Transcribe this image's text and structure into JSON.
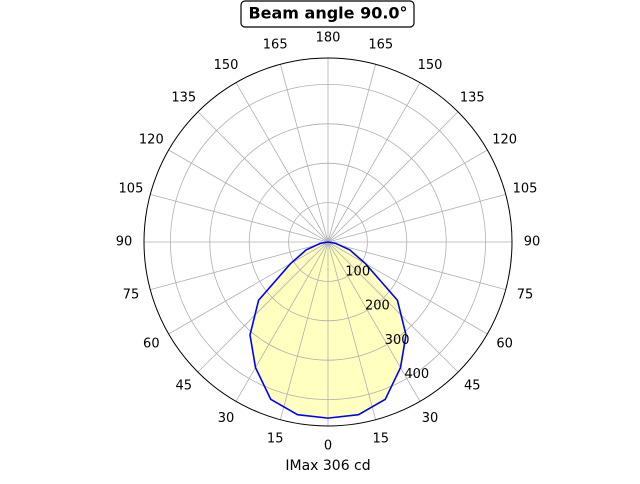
{
  "chart_data": {
    "type": "polar",
    "title": "Beam angle 90.0°",
    "xlabel": "IMax 306 cd",
    "x": [
      -90,
      -80,
      -70,
      -60,
      -50,
      -40,
      -30,
      -20,
      -10,
      0,
      10,
      20,
      30,
      40,
      50,
      60,
      70,
      80,
      90
    ],
    "series": [
      {
        "color": "#0000ff",
        "fill": "#ffffc0",
        "values": [
          0,
          20,
          59,
          110,
          230,
          308,
          368,
          425,
          445,
          447,
          445,
          425,
          368,
          308,
          230,
          110,
          59,
          20,
          0
        ]
      }
    ],
    "rlim": [
      0,
      467
    ],
    "rticks": [
      100,
      200,
      300,
      400
    ],
    "xticks": [
      {
        "value": -165,
        "label": "165"
      },
      {
        "value": -150,
        "label": "150"
      },
      {
        "value": -135,
        "label": "135"
      },
      {
        "value": -120,
        "label": "120"
      },
      {
        "value": -105,
        "label": "105"
      },
      {
        "value": -90,
        "label": "90"
      },
      {
        "value": -75,
        "label": "75"
      },
      {
        "value": -60,
        "label": "60"
      },
      {
        "value": -45,
        "label": "45"
      },
      {
        "value": -30,
        "label": "30"
      },
      {
        "value": -15,
        "label": "15"
      },
      0,
      15,
      30,
      45,
      60,
      75,
      90,
      105,
      120,
      135,
      150,
      165,
      180
    ],
    "grid": true
  }
}
